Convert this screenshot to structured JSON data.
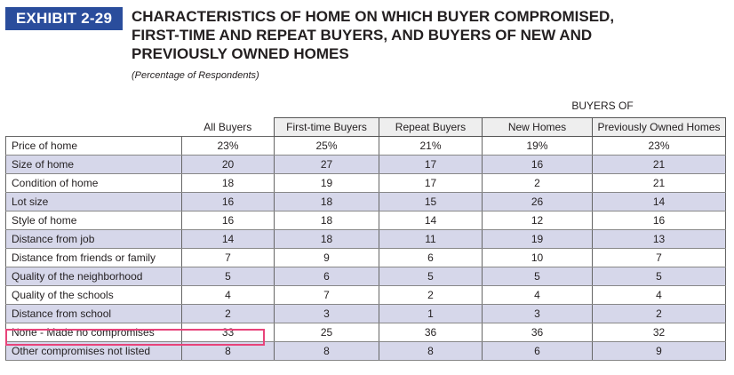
{
  "exhibit_label": "EXHIBIT 2-29",
  "title_lines": [
    "CHARACTERISTICS OF HOME ON WHICH BUYER COMPROMISED,",
    "FIRST-TIME AND REPEAT BUYERS, AND BUYERS OF NEW AND",
    "PREVIOUSLY OWNED HOMES"
  ],
  "subtitle": "(Percentage of Respondents)",
  "group_header": "BUYERS OF",
  "highlight_color": "#e8437a",
  "accent_color": "#2a4d9c",
  "table": {
    "columns": [
      "",
      "All Buyers",
      "First-time Buyers",
      "Repeat Buyers",
      "New Homes",
      "Previously Owned Homes"
    ],
    "rows": [
      {
        "label": "Price of home",
        "values": [
          "23%",
          "25%",
          "21%",
          "19%",
          "23%"
        ]
      },
      {
        "label": "Size of home",
        "values": [
          "20",
          "27",
          "17",
          "16",
          "21"
        ]
      },
      {
        "label": "Condition of home",
        "values": [
          "18",
          "19",
          "17",
          "2",
          "21"
        ]
      },
      {
        "label": "Lot size",
        "values": [
          "16",
          "18",
          "15",
          "26",
          "14"
        ]
      },
      {
        "label": "Style of home",
        "values": [
          "16",
          "18",
          "14",
          "12",
          "16"
        ]
      },
      {
        "label": "Distance from job",
        "values": [
          "14",
          "18",
          "11",
          "19",
          "13"
        ]
      },
      {
        "label": "Distance from friends or family",
        "values": [
          "7",
          "9",
          "6",
          "10",
          "7"
        ]
      },
      {
        "label": "Quality of the neighborhood",
        "values": [
          "5",
          "6",
          "5",
          "5",
          "5"
        ]
      },
      {
        "label": "Quality of the schools",
        "values": [
          "4",
          "7",
          "2",
          "4",
          "4"
        ]
      },
      {
        "label": "Distance from school",
        "values": [
          "2",
          "3",
          "1",
          "3",
          "2"
        ]
      },
      {
        "label": "None - Made no compromises",
        "values": [
          "33",
          "25",
          "36",
          "36",
          "32"
        ]
      },
      {
        "label": "Other compromises not listed",
        "values": [
          "8",
          "8",
          "8",
          "6",
          "9"
        ]
      }
    ]
  }
}
